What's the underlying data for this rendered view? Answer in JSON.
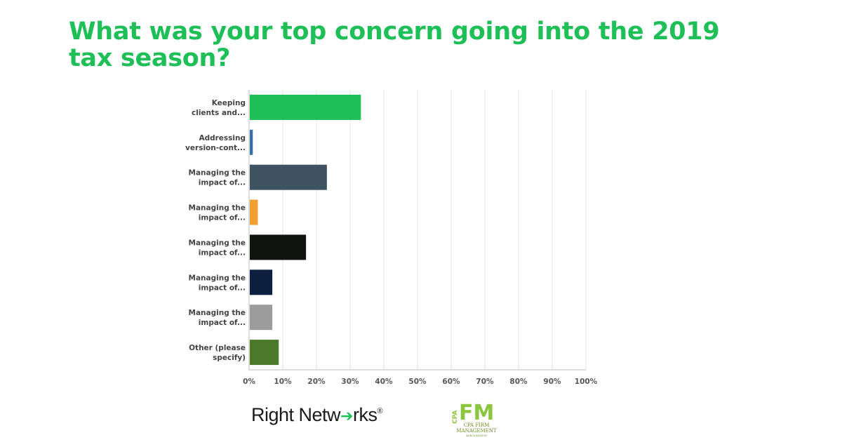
{
  "title": "What was your top concern going into the 2019 tax season?",
  "chart_data": {
    "type": "bar",
    "orientation": "horizontal",
    "categories": [
      [
        "Keeping",
        "clients and..."
      ],
      [
        "Addressing",
        "version-cont..."
      ],
      [
        "Managing the",
        "impact of..."
      ],
      [
        "Managing the",
        "impact of..."
      ],
      [
        "Managing the",
        "impact of..."
      ],
      [
        "Managing the",
        "impact of..."
      ],
      [
        "Managing the",
        "impact of..."
      ],
      [
        "Other (please",
        "specify)"
      ]
    ],
    "values": [
      33.2,
      1.1,
      23.1,
      2.6,
      16.9,
      6.9,
      6.9,
      8.8
    ],
    "colors": [
      "#1fbf58",
      "#3a6ea5",
      "#3f5260",
      "#f0a030",
      "#0f140f",
      "#0c1f3f",
      "#9b9b9b",
      "#4a7a2a"
    ],
    "xticks": [
      "0%",
      "10%",
      "20%",
      "30%",
      "40%",
      "50%",
      "60%",
      "70%",
      "80%",
      "90%",
      "100%"
    ],
    "xlim": [
      0,
      100
    ],
    "grid": true,
    "xlabel": "",
    "ylabel": ""
  },
  "logos": {
    "right_networks": {
      "pre": "Right Netw",
      "mid": "",
      "post": "rks",
      "reg": "®"
    },
    "cpafma": {
      "side": "CPA",
      "big": "FM",
      "line1": "CPA FIRM",
      "line2": "MANAGEMENT",
      "line3": "ASSOCIATION"
    }
  }
}
